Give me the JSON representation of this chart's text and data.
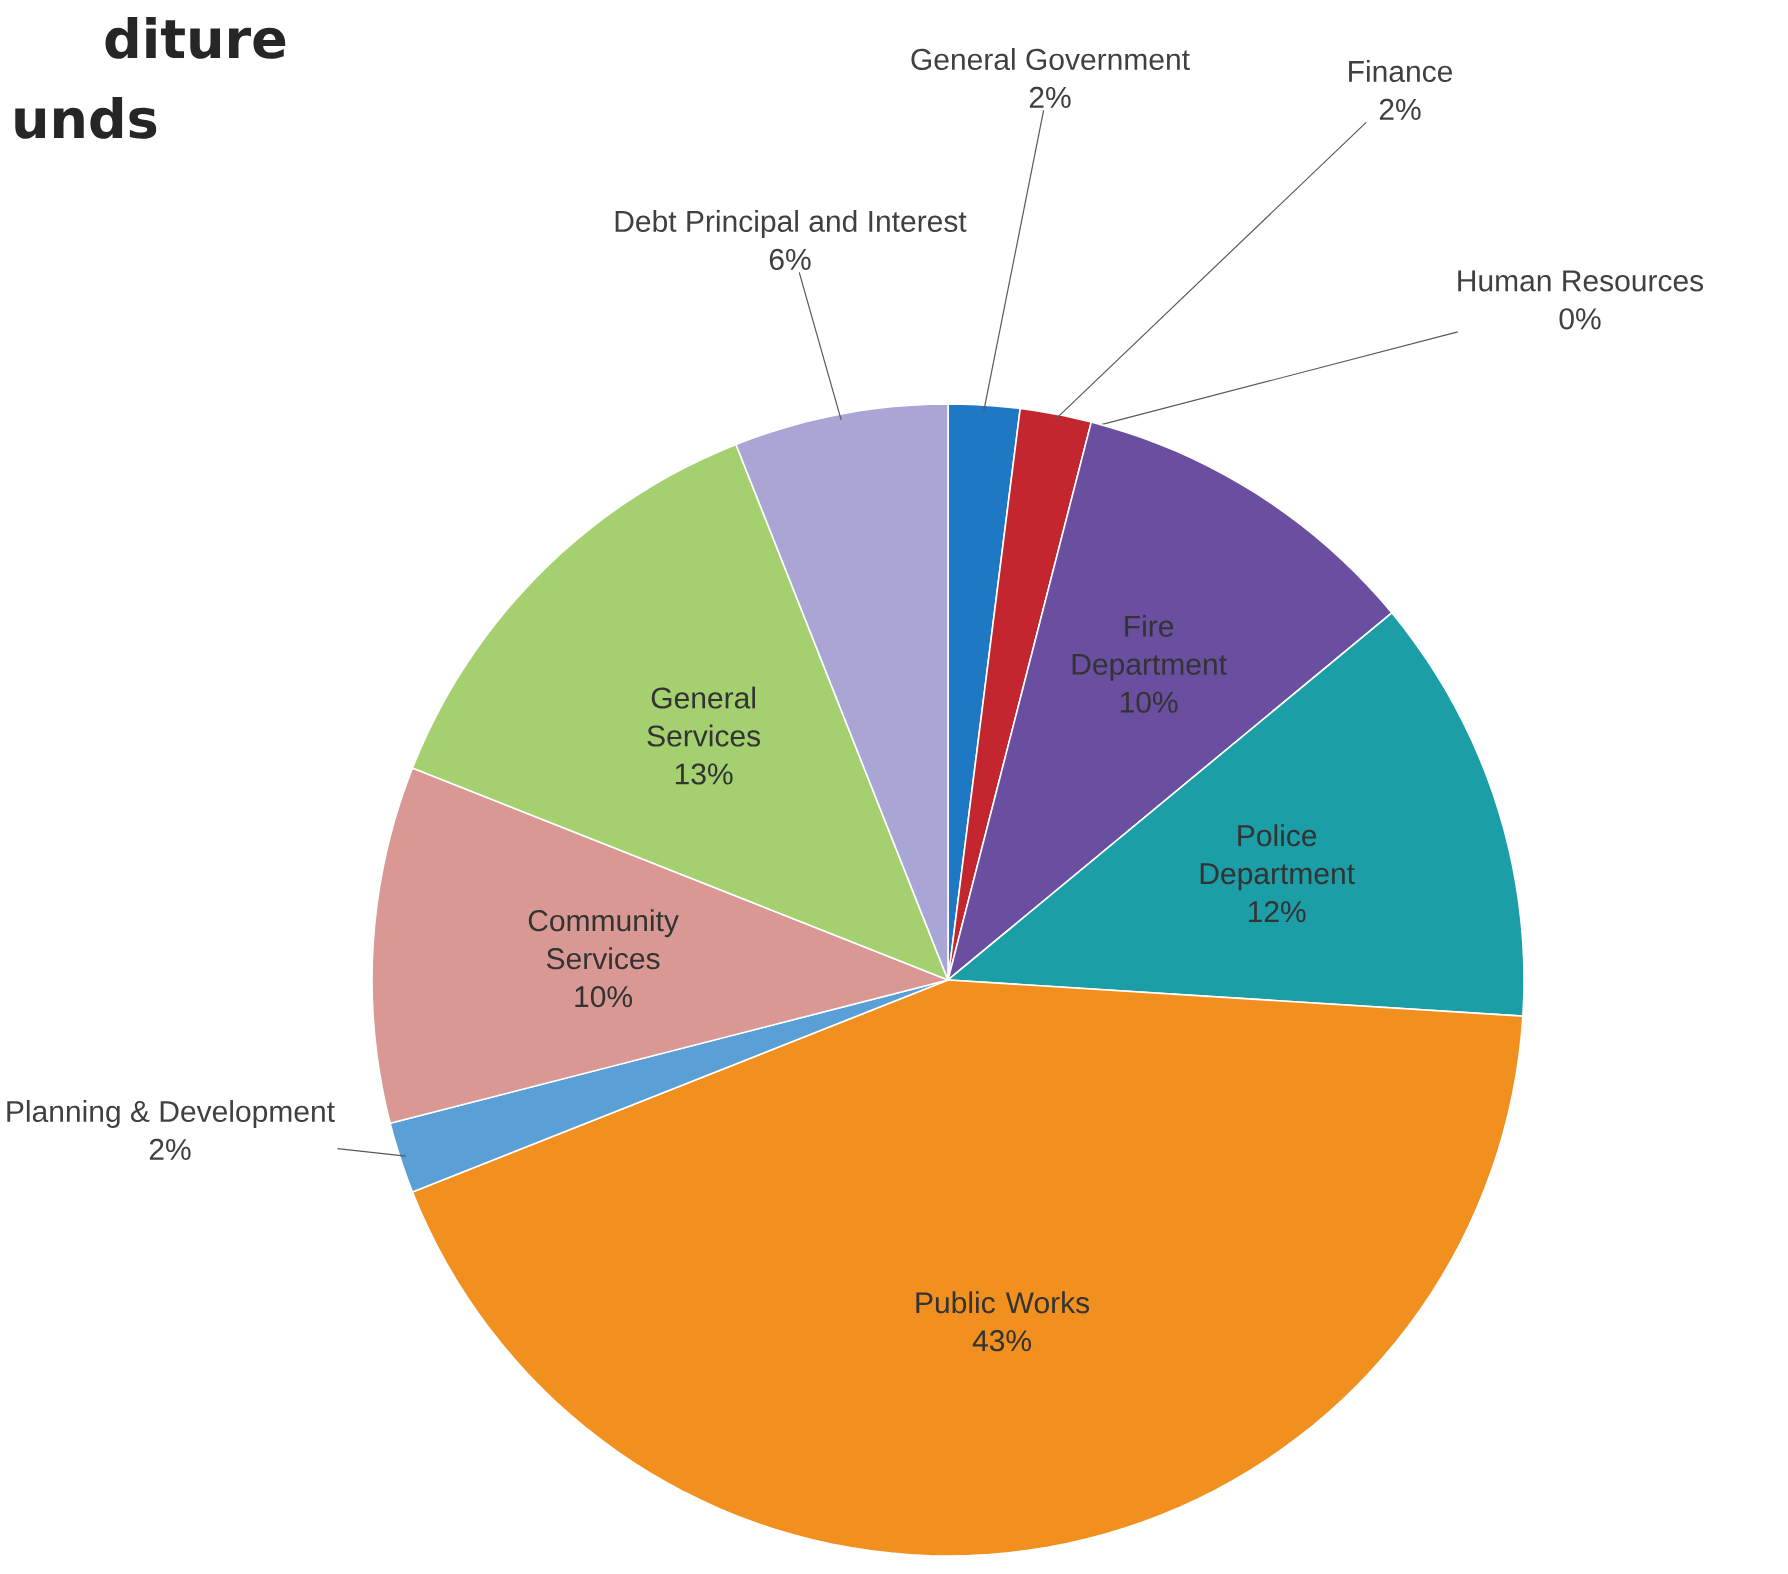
{
  "chart_data": {
    "type": "pie",
    "title": "diture",
    "subtitle": "unds",
    "categories": [
      "General Government",
      "Finance",
      "Human Resources",
      "Fire Department",
      "Police Department",
      "Public Works",
      "Planning & Development",
      "Community Services",
      "General Services",
      "Debt Principal and Interest"
    ],
    "values": [
      2,
      2,
      0,
      10,
      12,
      43,
      2,
      10,
      13,
      6
    ],
    "value_labels": [
      "2%",
      "2%",
      "0%",
      "10%",
      "12%",
      "43%",
      "2%",
      "10%",
      "13%",
      "6%"
    ],
    "colors": [
      "#1f78c4",
      "#c3262f",
      "#9a9a9a",
      "#6a4ea0",
      "#1c9ea6",
      "#f1901e",
      "#5aa0d6",
      "#d99894",
      "#a5d070",
      "#a9a6d6"
    ]
  }
}
